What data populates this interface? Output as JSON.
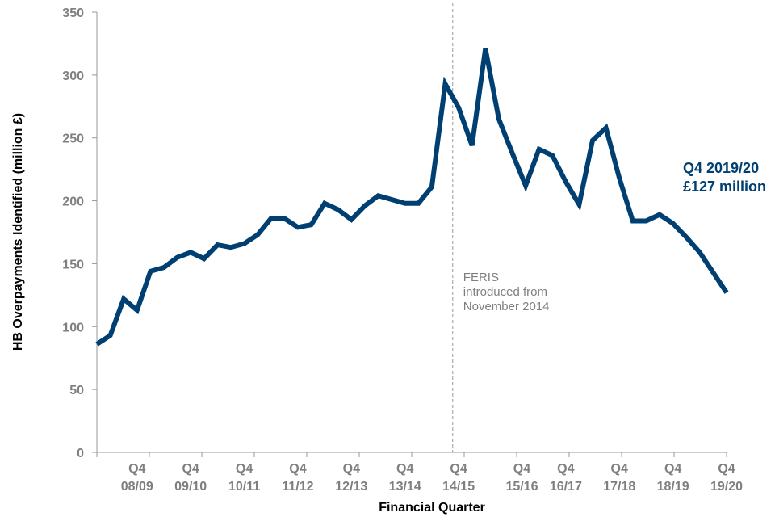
{
  "chart_data": {
    "type": "line",
    "xlabel": "Financial Quarter",
    "ylabel": "HB Overpayments Identified (million £)",
    "ylim": [
      0,
      350
    ],
    "yticks": [
      0,
      50,
      100,
      150,
      200,
      250,
      300,
      350
    ],
    "grid": false,
    "x_tick_labels": [
      {
        "index": 3,
        "line1": "Q4",
        "line2": "08/09"
      },
      {
        "index": 7,
        "line1": "Q4",
        "line2": "09/10"
      },
      {
        "index": 11,
        "line1": "Q4",
        "line2": "10/11"
      },
      {
        "index": 15,
        "line1": "Q4",
        "line2": "11/12"
      },
      {
        "index": 19,
        "line1": "Q4",
        "line2": "12/13"
      },
      {
        "index": 23,
        "line1": "Q4",
        "line2": "13/14"
      },
      {
        "index": 27,
        "line1": "Q4",
        "line2": "14/15"
      },
      {
        "index": 31,
        "line1": "Q4",
        "line2": "15/16"
      },
      {
        "index": 35,
        "line1": "Q4",
        "line2": "16/17"
      },
      {
        "index": 39,
        "line1": "Q4",
        "line2": "17/18"
      },
      {
        "index": 43,
        "line1": "Q4",
        "line2": "18/19"
      },
      {
        "index": 47,
        "line1": "Q4",
        "line2": "19/20"
      }
    ],
    "series": [
      {
        "color": "#003f72",
        "values": [
          86,
          93,
          122,
          113,
          144,
          147,
          155,
          159,
          154,
          165,
          163,
          166,
          173,
          186,
          186,
          179,
          181,
          198,
          193,
          185,
          196,
          204,
          201,
          198,
          198,
          211,
          293,
          274,
          244,
          321,
          265,
          238,
          212,
          241,
          236,
          215,
          197,
          248,
          258,
          218,
          184,
          184,
          189,
          182,
          171,
          159,
          143,
          127
        ]
      }
    ],
    "reference_line": {
      "index": 26.5,
      "color": "#999999",
      "style": "dashed"
    },
    "annotation": {
      "lines": [
        "FERIS",
        "introduced from",
        "November 2014"
      ]
    },
    "end_label": {
      "lines": [
        "Q4 2019/20",
        "£127 million"
      ],
      "color": "#003f72"
    }
  }
}
